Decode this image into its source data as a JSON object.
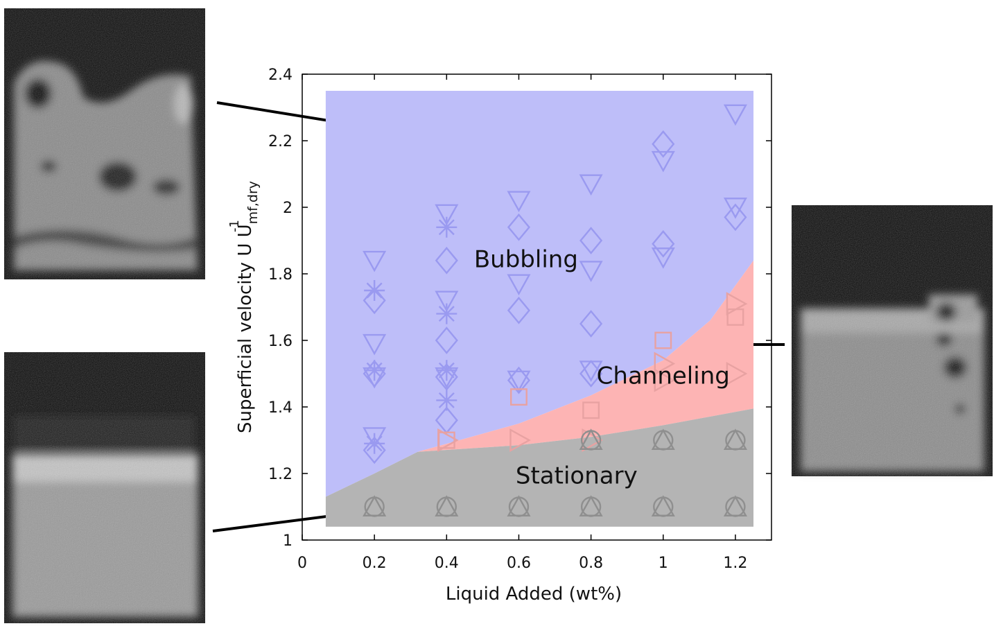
{
  "chart_data": {
    "type": "scatter",
    "xlabel": "Liquid Added (wt%)",
    "ylabel": {
      "main": "Superficial velocity U U",
      "sub": "mf,dry",
      "sup": "-1"
    },
    "xlim": [
      0,
      1.3
    ],
    "ylim": [
      1,
      2.4
    ],
    "x_ticks": [
      "0",
      "0.2",
      "0.4",
      "0.6",
      "0.8",
      "1",
      "1.2"
    ],
    "x_tick_values": [
      0,
      0.2,
      0.4,
      0.6,
      0.8,
      1.0,
      1.2
    ],
    "y_ticks": [
      "1",
      "1.2",
      "1.4",
      "1.6",
      "1.8",
      "2",
      "2.2",
      "2.4"
    ],
    "y_tick_values": [
      1.0,
      1.2,
      1.4,
      1.6,
      1.8,
      2.0,
      2.2,
      2.4
    ],
    "grid": false,
    "regions": [
      {
        "label": "Bubbling",
        "color": "#bebef9",
        "label_at": [
          0.62,
          1.82
        ]
      },
      {
        "label": "Channeling",
        "color": "#fdb4b4",
        "label_at": [
          1.0,
          1.47
        ]
      },
      {
        "label": "Stationary",
        "color": "#b4b4b4",
        "label_at": [
          0.76,
          1.17
        ]
      }
    ],
    "boundaries": {
      "region_x": [
        0.065,
        1.25
      ],
      "top_y": 2.35,
      "bottom_y": 1.04,
      "channeling_upper": [
        [
          0.32,
          1.265
        ],
        [
          0.6,
          1.35
        ],
        [
          0.8,
          1.435
        ],
        [
          1.0,
          1.54
        ],
        [
          1.13,
          1.66
        ],
        [
          1.25,
          1.84
        ]
      ],
      "stationary_upper": [
        [
          0.065,
          1.13
        ],
        [
          0.2,
          1.2
        ],
        [
          0.32,
          1.265
        ],
        [
          0.6,
          1.285
        ],
        [
          0.8,
          1.31
        ],
        [
          1.0,
          1.345
        ],
        [
          1.25,
          1.395
        ]
      ]
    },
    "series": [
      {
        "marker": "triangle-down",
        "color": "#9a9af0",
        "x": [
          0.2,
          0.2,
          0.2,
          0.2,
          0.4,
          0.4,
          0.4,
          0.6,
          0.6,
          0.6,
          0.8,
          0.8,
          0.8,
          1.0,
          1.0,
          1.2,
          1.2
        ],
        "y": [
          1.84,
          1.59,
          1.49,
          1.31,
          1.98,
          1.72,
          1.49,
          2.02,
          1.77,
          1.48,
          2.07,
          1.81,
          1.51,
          2.14,
          1.85,
          2.28,
          2.0
        ]
      },
      {
        "marker": "diamond",
        "color": "#9a9af0",
        "x": [
          0.2,
          0.2,
          0.2,
          0.4,
          0.4,
          0.4,
          0.4,
          0.6,
          0.6,
          0.6,
          0.8,
          0.8,
          0.8,
          1.0,
          1.0,
          1.2
        ],
        "y": [
          1.72,
          1.5,
          1.27,
          1.84,
          1.6,
          1.49,
          1.36,
          1.94,
          1.69,
          1.48,
          1.9,
          1.65,
          1.5,
          2.19,
          1.89,
          1.97
        ]
      },
      {
        "marker": "star",
        "color": "#9a9af0",
        "x": [
          0.2,
          0.2,
          0.2,
          0.4,
          0.4,
          0.4,
          0.4
        ],
        "y": [
          1.75,
          1.51,
          1.29,
          1.94,
          1.68,
          1.51,
          1.42
        ]
      },
      {
        "marker": "square",
        "color": "#e8a2a2",
        "x": [
          0.4,
          0.6,
          0.8,
          1.0,
          1.2
        ],
        "y": [
          1.3,
          1.43,
          1.39,
          1.6,
          1.67
        ]
      },
      {
        "marker": "triangle-right",
        "color": "#e8a2a2",
        "x": [
          0.4,
          0.6,
          0.8,
          1.0,
          1.2
        ],
        "y": [
          1.3,
          1.3,
          1.3,
          1.53,
          1.71
        ]
      },
      {
        "marker": "triangle-right",
        "color": "#e8a2a2",
        "x": [
          1.0,
          1.2
        ],
        "y": [
          1.48,
          1.5
        ]
      },
      {
        "marker": "triangle-up",
        "color": "#8f8f8f",
        "x": [
          0.2,
          0.4,
          0.6,
          0.8,
          1.0,
          1.2
        ],
        "y": [
          1.1,
          1.1,
          1.1,
          1.1,
          1.1,
          1.1
        ]
      },
      {
        "marker": "circle",
        "color": "#8f8f8f",
        "x": [
          0.2,
          0.4,
          0.6,
          0.8,
          1.0,
          1.2
        ],
        "y": [
          1.1,
          1.1,
          1.1,
          1.1,
          1.1,
          1.1
        ]
      },
      {
        "marker": "triangle-up",
        "color": "#8f8f8f",
        "x": [
          0.8,
          1.0,
          1.2
        ],
        "y": [
          1.3,
          1.3,
          1.3
        ]
      },
      {
        "marker": "circle",
        "color": "#8f8f8f",
        "x": [
          0.8,
          1.0,
          1.2
        ],
        "y": [
          1.3,
          1.3,
          1.3
        ]
      }
    ]
  }
}
